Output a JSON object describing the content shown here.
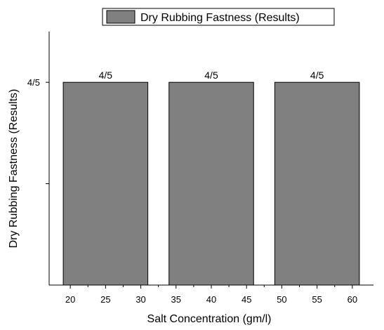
{
  "chart_data": {
    "type": "bar",
    "legend": "Dry Rubbing Fastness (Results)",
    "legend_position": "top-right",
    "bar_color": "#808080",
    "xlabel": "Salt Concentration (gm/l)",
    "ylabel": "Dry Rubbing Fastness (Results)",
    "xlim": [
      17,
      63
    ],
    "ylim": [
      0,
      5
    ],
    "x_ticks": [
      20,
      25,
      30,
      35,
      40,
      45,
      50,
      55,
      60
    ],
    "y_ticks": [
      {
        "value": 4,
        "label": "4/5"
      },
      {
        "value": 2,
        "label": ""
      }
    ],
    "bars": [
      {
        "x_start": 19,
        "x_end": 31,
        "value": 4,
        "label": "4/5"
      },
      {
        "x_start": 34,
        "x_end": 46,
        "value": 4,
        "label": "4/5"
      },
      {
        "x_start": 49,
        "x_end": 61,
        "value": 4,
        "label": "4/5"
      }
    ],
    "grid": false
  }
}
